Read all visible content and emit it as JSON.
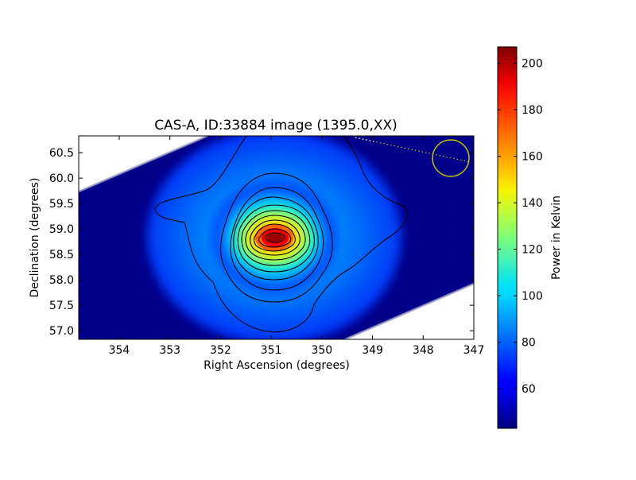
{
  "chart_data": {
    "type": "heatmap",
    "title": "CAS-A, ID:33884 image (1395.0,XX)",
    "xlabel": "Right Ascension (degrees)",
    "ylabel": "Declination (degrees)",
    "xlim": [
      354.8,
      347.0
    ],
    "ylim": [
      56.83,
      60.83
    ],
    "x_ticks": [
      354,
      353,
      352,
      351,
      350,
      349,
      348,
      347
    ],
    "x_tick_labels": [
      "354",
      "353",
      "352",
      "351",
      "350",
      "349",
      "348",
      "347"
    ],
    "y_ticks": [
      57.0,
      57.5,
      58.0,
      58.5,
      59.0,
      59.5,
      60.0,
      60.5
    ],
    "y_tick_labels": [
      "57.0",
      "57.5",
      "58.0",
      "58.5",
      "59.0",
      "59.5",
      "60.0",
      "60.5"
    ],
    "colorbar": {
      "label": "Power in Kelvin",
      "range": [
        43,
        207
      ],
      "ticks": [
        60,
        80,
        100,
        120,
        140,
        160,
        180,
        200
      ],
      "tick_labels": [
        "60",
        "80",
        "100",
        "120",
        "140",
        "160",
        "180",
        "200"
      ],
      "colormap": "jet"
    },
    "peak": {
      "ra": 350.8,
      "dec": 58.82,
      "value": 207
    },
    "background_level": 43,
    "beam_circle": {
      "ra": 347.5,
      "dec": 60.38,
      "color": "#bfbf00"
    },
    "grid": false
  }
}
